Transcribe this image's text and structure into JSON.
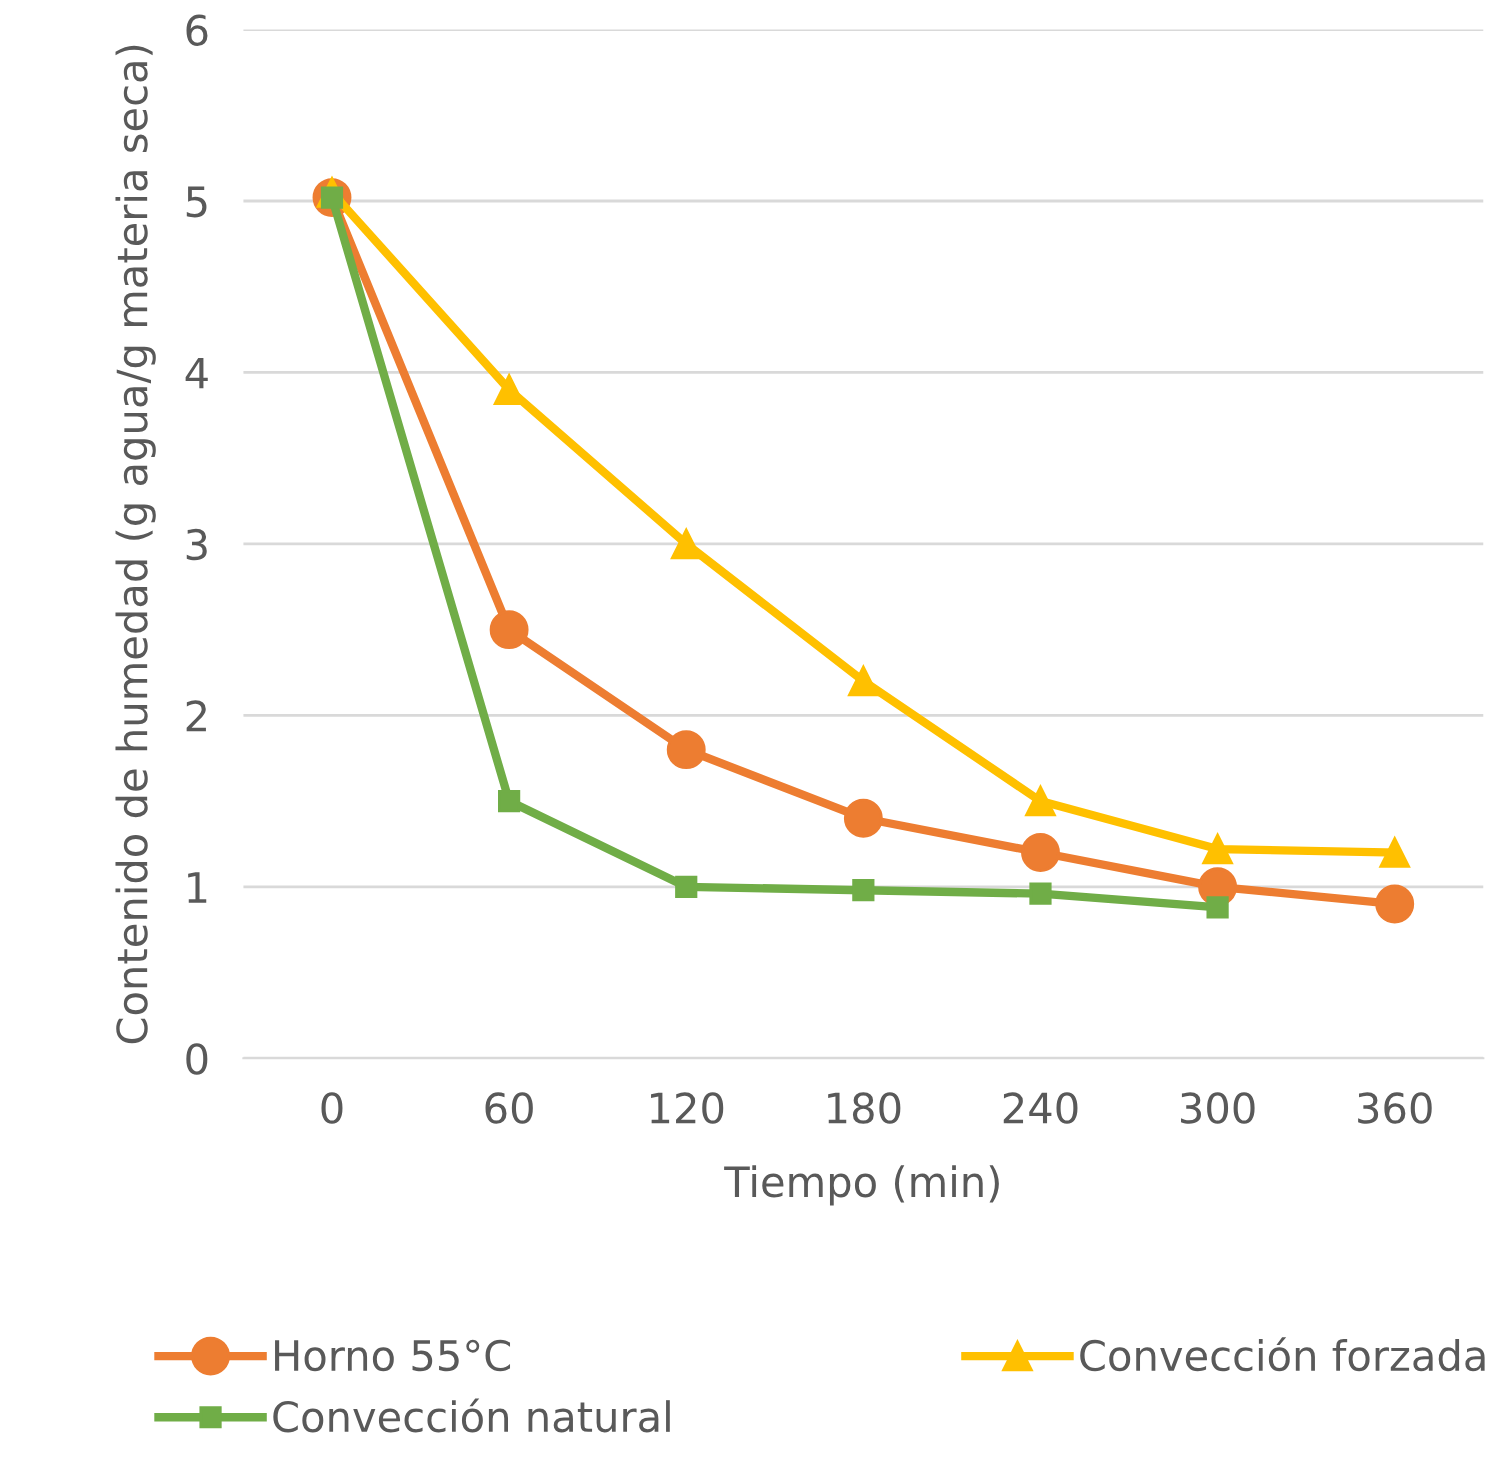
{
  "chart_data": {
    "type": "line",
    "xlabel": "Tiempo (min)",
    "ylabel": "Contenido de humedad (g agua/g materia seca)",
    "categories": [
      "0",
      "60",
      "120",
      "180",
      "240",
      "300",
      "360"
    ],
    "series": [
      {
        "name": "Horno 55°C",
        "color": "#ed7d31",
        "marker": "circle",
        "values": [
          5.02,
          2.5,
          1.8,
          1.4,
          1.2,
          1.0,
          0.9
        ]
      },
      {
        "name": "Convección forzada",
        "color": "#ffc000",
        "marker": "triangle",
        "values": [
          5.05,
          3.9,
          3.0,
          2.2,
          1.5,
          1.22,
          1.2
        ]
      },
      {
        "name": "Convección natural",
        "color": "#70ad47",
        "marker": "square",
        "values": [
          5.02,
          1.5,
          1.0,
          0.98,
          0.96,
          0.88,
          null
        ]
      }
    ],
    "ylim": [
      0,
      6
    ],
    "yticks": [
      0,
      1,
      2,
      3,
      4,
      5,
      6
    ],
    "grid": "y",
    "legend": "bottom",
    "line_style": "solid"
  }
}
